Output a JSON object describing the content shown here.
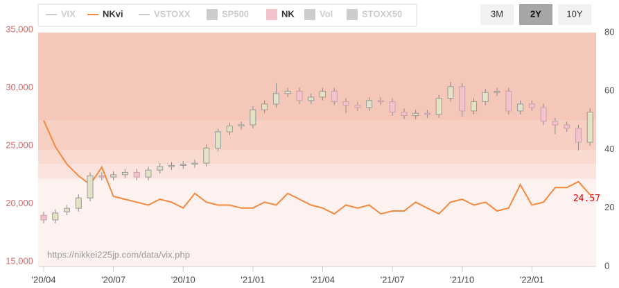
{
  "chart_data": {
    "type": "candlestick",
    "categories": [
      "'20/04",
      null,
      null,
      null,
      null,
      null,
      "'20/07",
      null,
      null,
      null,
      null,
      null,
      "'20/10",
      null,
      null,
      null,
      null,
      null,
      "'21/01",
      null,
      null,
      null,
      null,
      null,
      "'21/04",
      null,
      null,
      null,
      null,
      null,
      "'21/07",
      null,
      null,
      null,
      null,
      null,
      "'21/10",
      null,
      null,
      null,
      null,
      null,
      "'22/01",
      null,
      null,
      null,
      null,
      null
    ],
    "series": [
      {
        "name": "VIX",
        "symbol": "line",
        "color": "#cccccc",
        "visible": false
      },
      {
        "name": "NKvi",
        "type": "line",
        "axis": "y2",
        "symbol": "line",
        "color": "#f4883f",
        "visible": true,
        "values": [
          50,
          41,
          35,
          31,
          28,
          34,
          24,
          23,
          22,
          21,
          23,
          22,
          20,
          25,
          22,
          21,
          21,
          20,
          20,
          22,
          21,
          25,
          23,
          21,
          20,
          18,
          21,
          20,
          21,
          18,
          19,
          19,
          22,
          20,
          18,
          22,
          23,
          21,
          22,
          19,
          20,
          28,
          21,
          22,
          27,
          27,
          29,
          24.57
        ]
      },
      {
        "name": "VSTOXX",
        "symbol": "line",
        "color": "#cccccc",
        "visible": false
      },
      {
        "name": "SP500",
        "symbol": "box",
        "color": "#cccccc",
        "visible": false
      },
      {
        "name": "NK",
        "type": "candlestick",
        "symbol": "box",
        "color": "#f4c2cc",
        "up_color": "#e4e3c6",
        "visible": true,
        "open": [
          19000,
          18600,
          19300,
          19600,
          20500,
          22400,
          22300,
          22500,
          22700,
          22300,
          22900,
          23200,
          23300,
          23400,
          23500,
          24800,
          26200,
          26700,
          26800,
          28100,
          28600,
          29500,
          29700,
          28900,
          29200,
          29700,
          28800,
          28500,
          28300,
          28900,
          28800,
          27900,
          27600,
          27800,
          27700,
          29100,
          30100,
          28000,
          28800,
          29600,
          29700,
          28000,
          28600,
          28300,
          27100,
          26800,
          26500,
          25300
        ],
        "high": [
          19300,
          19500,
          19900,
          20800,
          22700,
          22700,
          22800,
          23000,
          23000,
          23200,
          23500,
          23600,
          23700,
          23800,
          25100,
          26500,
          27000,
          27100,
          28400,
          28900,
          30400,
          30000,
          30000,
          29500,
          30000,
          30000,
          29100,
          28800,
          29200,
          29200,
          29100,
          28200,
          28100,
          28100,
          29400,
          30500,
          30400,
          29100,
          29900,
          30000,
          30000,
          28900,
          28900,
          28600,
          27400,
          27100,
          26800,
          28200
        ],
        "low": [
          18300,
          18300,
          19000,
          19300,
          20200,
          22000,
          22000,
          22200,
          22000,
          22000,
          22600,
          22900,
          23000,
          23100,
          23200,
          24500,
          25900,
          26400,
          26500,
          27800,
          28300,
          29200,
          28600,
          28600,
          28900,
          28500,
          27800,
          28000,
          28000,
          28500,
          27600,
          27300,
          27300,
          27400,
          27400,
          28800,
          27500,
          27700,
          28500,
          29300,
          27700,
          27700,
          28000,
          26800,
          26000,
          26200,
          24600,
          25000
        ],
        "close": [
          18600,
          19200,
          19600,
          20500,
          22400,
          22300,
          22500,
          22700,
          22300,
          22900,
          23200,
          23300,
          23400,
          23500,
          24800,
          26200,
          26700,
          26800,
          28100,
          28600,
          29500,
          29700,
          28900,
          29200,
          29700,
          28800,
          28500,
          28300,
          28900,
          28800,
          27900,
          27600,
          27800,
          27700,
          29100,
          30100,
          28000,
          28800,
          29600,
          29700,
          28000,
          28600,
          28300,
          27100,
          26800,
          26500,
          25300,
          27900
        ]
      },
      {
        "name": "Vol",
        "symbol": "box",
        "color": "#cccccc",
        "visible": false
      },
      {
        "name": "STOXX50",
        "symbol": "box",
        "color": "#cccccc",
        "visible": false
      }
    ],
    "ylim": [
      15000,
      35000
    ],
    "yticks": [
      {
        "value": 15000,
        "label": "15,000"
      },
      {
        "value": 20000,
        "label": "20,000"
      },
      {
        "value": 25000,
        "label": "25,000"
      },
      {
        "value": 30000,
        "label": "30,000"
      },
      {
        "value": 35000,
        "label": "35,000"
      }
    ],
    "y2lim": [
      0,
      80
    ],
    "y2ticks": [
      0,
      20,
      40,
      60,
      80
    ],
    "bands": [
      {
        "from": 0,
        "to": 30,
        "color": "#fdf2ef"
      },
      {
        "from": 30,
        "to": 35,
        "color": "#fbe4dd"
      },
      {
        "from": 35,
        "to": 40,
        "color": "#f9dad0"
      },
      {
        "from": 40,
        "to": 50,
        "color": "#f7d0c3"
      },
      {
        "from": 50,
        "to": 80,
        "color": "#f5c7b8"
      }
    ],
    "range_buttons": [
      "3M",
      "2Y",
      "10Y"
    ],
    "selected_range": 1,
    "source": "https://nikkei225jp.com/data/vix.php"
  }
}
